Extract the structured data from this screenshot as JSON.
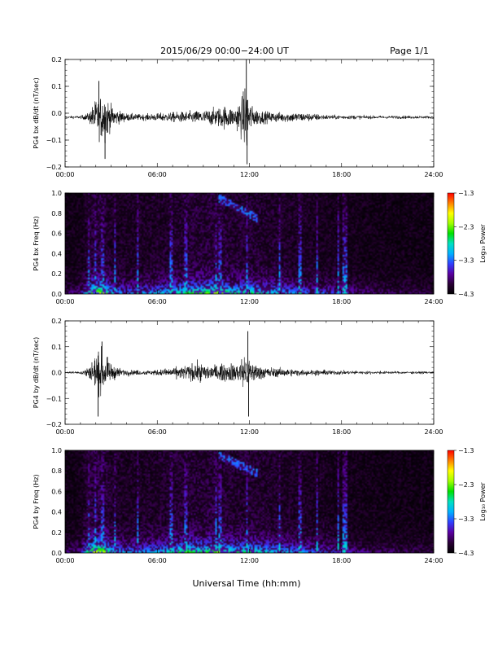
{
  "header": {
    "title": "2015/06/29  00:00−24:00 UT",
    "page": "Page 1/1"
  },
  "colors": {
    "trace": "#000000",
    "spectrogram_background": "#000000",
    "colormap": [
      "#000000",
      "#2a0036",
      "#5a00a0",
      "#3040ff",
      "#00b0ff",
      "#00e0c0",
      "#00e000",
      "#a0ff00",
      "#ffff00",
      "#ff8000",
      "#ff0000"
    ]
  },
  "chart_data": [
    {
      "type": "line",
      "id": "bx-dbdt",
      "ylabel": "PG4 bx dB/dt (nT/sec)",
      "xlim": [
        "00:00",
        "24:00"
      ],
      "ylim": [
        -0.2,
        0.2
      ],
      "x_ticks": [
        "00:00",
        "06:00",
        "12:00",
        "18:00",
        "24:00"
      ],
      "y_ticks": [
        "0.2",
        "0.1",
        "0.0",
        "−0.1",
        "−0.2"
      ],
      "baseline": -0.015,
      "envelope": {
        "hours": [
          0,
          1.0,
          1.5,
          1.8,
          2.0,
          2.3,
          2.6,
          2.9,
          3.3,
          4.0,
          5.0,
          6.0,
          7.0,
          8.0,
          9.0,
          10.0,
          10.5,
          11.0,
          11.6,
          11.8,
          12.0,
          12.2,
          12.6,
          13.0,
          14.0,
          15.0,
          16.0,
          17.0,
          18.0,
          19.0,
          20.0,
          21.0,
          22.0,
          23.0,
          24.0
        ],
        "amplitude": [
          0.006,
          0.008,
          0.02,
          0.06,
          0.09,
          0.11,
          0.13,
          0.07,
          0.04,
          0.02,
          0.015,
          0.02,
          0.025,
          0.03,
          0.035,
          0.05,
          0.06,
          0.045,
          0.12,
          0.2,
          0.1,
          0.05,
          0.04,
          0.03,
          0.025,
          0.025,
          0.02,
          0.012,
          0.01,
          0.01,
          0.008,
          0.008,
          0.008,
          0.008,
          0.006
        ]
      },
      "spikes": [
        {
          "hour": 2.6,
          "value": -0.17
        },
        {
          "hour": 2.2,
          "value": 0.12
        },
        {
          "hour": 11.8,
          "value": 0.2
        },
        {
          "hour": 11.85,
          "value": -0.19
        }
      ]
    },
    {
      "type": "heatmap",
      "id": "bx-spec",
      "ylabel": "PG4 bx Freq (Hz)",
      "xlim": [
        "00:00",
        "24:00"
      ],
      "ylim": [
        0,
        1.0
      ],
      "x_ticks": [
        "00:00",
        "06:00",
        "12:00",
        "18:00",
        "24:00"
      ],
      "y_ticks": [
        "1.0",
        "0.8",
        "0.6",
        "0.4",
        "0.2",
        "0.0"
      ],
      "colorbar": {
        "label": "Log₁₀ Power",
        "range": [
          -4.3,
          -1.3
        ],
        "ticks": [
          "−1.3",
          "−2.3",
          "−3.3",
          "−4.3"
        ]
      },
      "activity": {
        "hours": [
          0,
          1.0,
          1.5,
          2.0,
          2.5,
          3.0,
          4.0,
          5.0,
          6.0,
          7.0,
          8.0,
          9.0,
          10.0,
          10.5,
          11.0,
          12.0,
          13.0,
          14.0,
          15.0,
          16.0,
          17.0,
          18.0,
          19.0,
          20.0,
          21.0,
          22.0,
          23.0,
          24.0
        ],
        "level": [
          0.15,
          0.2,
          0.55,
          0.8,
          0.75,
          0.45,
          0.35,
          0.4,
          0.45,
          0.5,
          0.6,
          0.65,
          0.75,
          0.65,
          0.55,
          0.6,
          0.5,
          0.45,
          0.4,
          0.35,
          0.3,
          0.25,
          0.2,
          0.15,
          0.15,
          0.12,
          0.12,
          0.1
        ]
      },
      "stripes_hours": [
        1.55,
        1.95,
        2.45,
        3.25,
        4.75,
        6.9,
        7.85,
        9.85,
        10.1,
        11.85,
        13.95,
        15.3,
        16.4,
        17.8,
        18.1,
        18.25
      ],
      "high_band": {
        "hour_start": 10.0,
        "hour_end": 12.5,
        "freq_start": 0.95,
        "freq_end": 0.75
      }
    },
    {
      "type": "line",
      "id": "by-dbdt",
      "ylabel": "PG4 by dB/dt (nT/sec)",
      "xlim": [
        "00:00",
        "24:00"
      ],
      "ylim": [
        -0.2,
        0.2
      ],
      "x_ticks": [
        "00:00",
        "06:00",
        "12:00",
        "18:00",
        "24:00"
      ],
      "y_ticks": [
        "0.2",
        "0.1",
        "0.0",
        "−0.1",
        "−0.2"
      ],
      "baseline": 0.0,
      "envelope": {
        "hours": [
          0,
          1.0,
          1.5,
          1.8,
          2.0,
          2.3,
          2.6,
          2.9,
          3.3,
          4.0,
          5.0,
          6.0,
          7.0,
          8.0,
          8.5,
          9.0,
          10.0,
          10.5,
          11.0,
          11.6,
          11.8,
          12.0,
          12.3,
          12.8,
          13.5,
          14.5,
          15.5,
          16.5,
          17.5,
          18.5,
          19.5,
          20.5,
          21.5,
          22.5,
          24.0
        ],
        "amplitude": [
          0.005,
          0.008,
          0.03,
          0.07,
          0.1,
          0.11,
          0.09,
          0.05,
          0.03,
          0.015,
          0.012,
          0.015,
          0.025,
          0.04,
          0.05,
          0.045,
          0.04,
          0.045,
          0.05,
          0.08,
          0.14,
          0.07,
          0.05,
          0.035,
          0.025,
          0.02,
          0.015,
          0.015,
          0.012,
          0.01,
          0.008,
          0.008,
          0.007,
          0.007,
          0.006
        ]
      },
      "spikes": [
        {
          "hour": 2.15,
          "value": -0.17
        },
        {
          "hour": 2.4,
          "value": 0.12
        },
        {
          "hour": 11.9,
          "value": 0.16
        },
        {
          "hour": 11.95,
          "value": -0.17
        }
      ]
    },
    {
      "type": "heatmap",
      "id": "by-spec",
      "ylabel": "PG4 by Freq (Hz)",
      "xlim": [
        "00:00",
        "24:00"
      ],
      "ylim": [
        0,
        1.0
      ],
      "x_ticks": [
        "00:00",
        "06:00",
        "12:00",
        "18:00",
        "24:00"
      ],
      "y_ticks": [
        "1.0",
        "0.8",
        "0.6",
        "0.4",
        "0.2",
        "0.0"
      ],
      "colorbar": {
        "label": "Log₁₀ Power",
        "range": [
          -4.3,
          -1.3
        ],
        "ticks": [
          "−1.3",
          "−2.3",
          "−3.3",
          "−4.3"
        ]
      },
      "activity": {
        "hours": [
          0,
          1.0,
          1.5,
          2.0,
          2.5,
          3.0,
          4.0,
          5.0,
          6.0,
          7.0,
          8.0,
          9.0,
          10.0,
          10.5,
          11.0,
          12.0,
          13.0,
          14.0,
          15.0,
          16.0,
          17.0,
          18.0,
          19.0,
          20.0,
          21.0,
          22.0,
          23.0,
          24.0
        ],
        "level": [
          0.15,
          0.2,
          0.6,
          0.85,
          0.8,
          0.5,
          0.4,
          0.4,
          0.45,
          0.55,
          0.65,
          0.6,
          0.7,
          0.6,
          0.55,
          0.6,
          0.5,
          0.45,
          0.4,
          0.35,
          0.3,
          0.25,
          0.2,
          0.15,
          0.15,
          0.12,
          0.12,
          0.1
        ]
      },
      "stripes_hours": [
        1.55,
        1.95,
        2.45,
        3.25,
        4.75,
        6.9,
        7.85,
        9.85,
        10.1,
        11.85,
        13.95,
        15.3,
        16.4,
        17.8,
        18.1,
        18.25
      ],
      "high_band": {
        "hour_start": 10.0,
        "hour_end": 12.5,
        "freq_start": 0.95,
        "freq_end": 0.78
      }
    }
  ],
  "xlabel": "Universal Time (hh:mm)"
}
